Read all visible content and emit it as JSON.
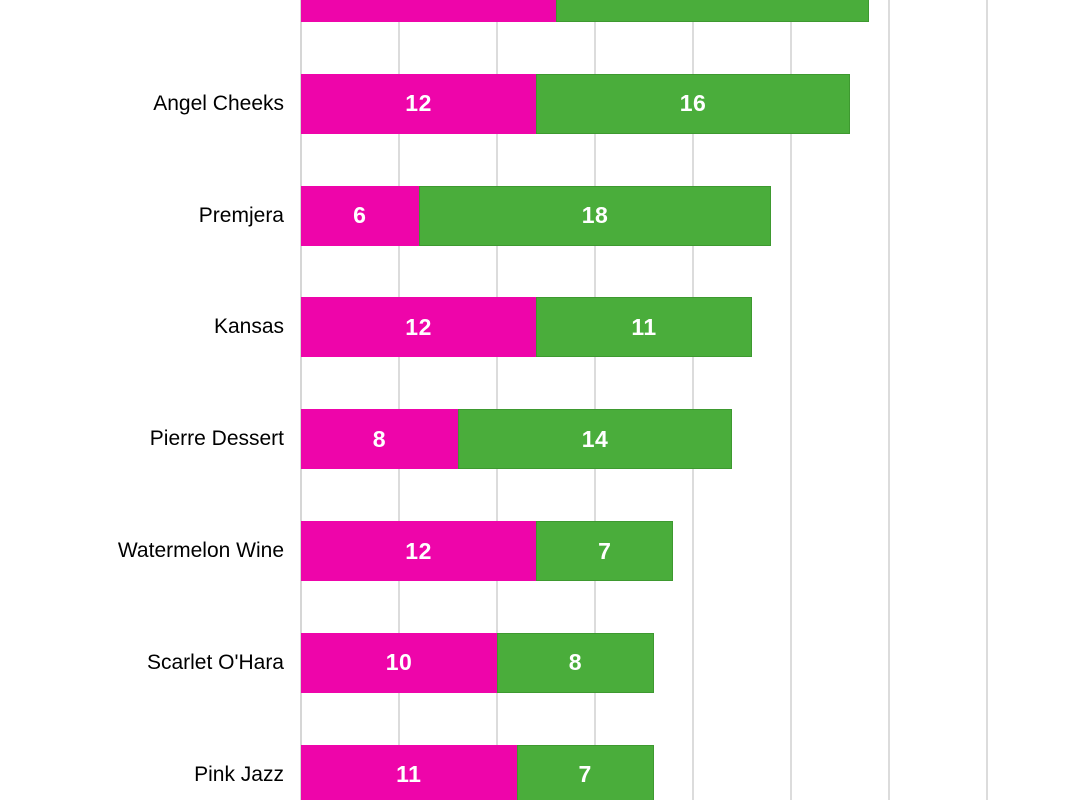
{
  "chart_data": {
    "type": "bar",
    "orientation": "horizontal",
    "stacked": true,
    "title": "",
    "categories": [
      "",
      "Angel Cheeks",
      "Premjera",
      "Kansas",
      "Pierre Dessert",
      "Watermelon Wine",
      "Scarlet O'Hara",
      "Pink Jazz"
    ],
    "series": [
      {
        "name": "series-magenta",
        "color": "#ee05aa",
        "values": [
          13,
          12,
          6,
          12,
          8,
          12,
          10,
          11
        ]
      },
      {
        "name": "series-green",
        "color": "#4aad3b",
        "values": [
          16,
          16,
          18,
          11,
          14,
          7,
          8,
          7
        ]
      }
    ],
    "totals": [
      29,
      28,
      24,
      23,
      22,
      19,
      18,
      18
    ],
    "x_axis": {
      "min": 0,
      "gridline_step": 5,
      "visible_gridlines": [
        0,
        5,
        10,
        15,
        20,
        25,
        30,
        35
      ],
      "tick_labels_visible": false
    },
    "y_axis": {
      "tick_labels_visible": true
    },
    "grid": "vertical, light gray, on",
    "legend": "none",
    "value_labels": "white bold, centered inside each segment",
    "colors": {
      "background": "#ffffff",
      "gridline": "#dcdcdc",
      "category_text": "#000000",
      "value_text": "#ffffff"
    }
  }
}
